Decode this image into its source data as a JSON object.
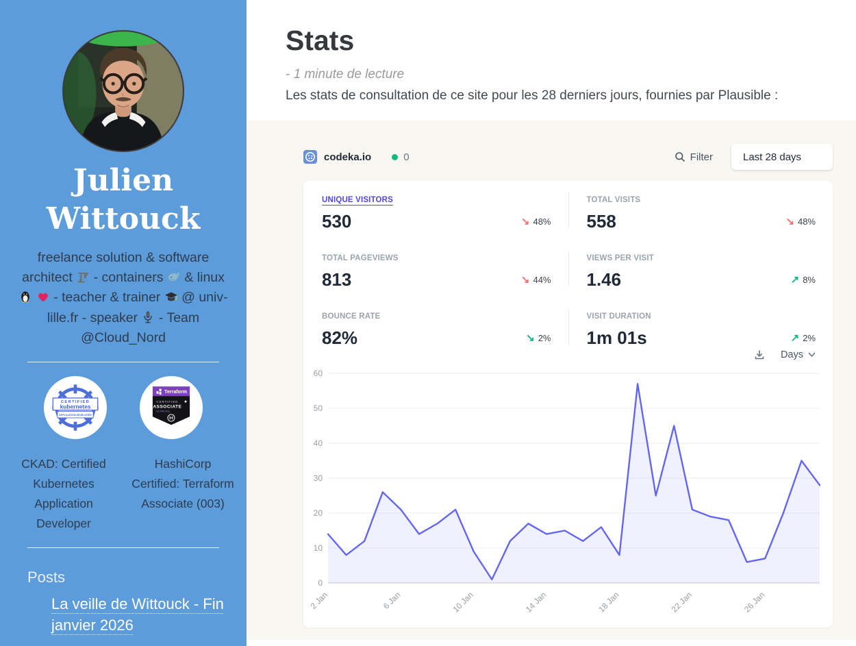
{
  "sidebar": {
    "name": "Julien Wittouck",
    "bio": "freelance solution & software architect 🏗 - containers 🐳 & linux 🐧 ❤️ - teacher & trainer 🎓 @ univ-lille.fr - speaker 🎙 - Team @Cloud_Nord",
    "badges": [
      {
        "caption": "CKAD: Certified Kubernetes Application Developer",
        "image_lines": [
          "CERTIFIED",
          "kubernetes",
          "APPLICATION DEVELOPER"
        ]
      },
      {
        "caption": "HashiCorp Certified: Terraform Associate (003)",
        "image_lines": [
          "Terraform",
          "CERTIFIED",
          "ASSOCIATE",
          "HCTA0-003"
        ]
      }
    ],
    "posts_heading": "Posts",
    "posts": [
      "La veille de Wittouck - Fin janvier 2026"
    ]
  },
  "main": {
    "title": "Stats",
    "reading_time": "- 1 minute de lecture",
    "description": "Les stats de consultation de ce site pour les 28 derniers jours, fournies par Plausible :"
  },
  "plausible": {
    "site": "codeka.io",
    "current_visitors": "0",
    "filter_label": "Filter",
    "date_range": "Last 28 days",
    "interval_label": "Days",
    "metrics": [
      {
        "label": "UNIQUE VISITORS",
        "value": "530",
        "change": "48%",
        "direction": "down",
        "trend_color": "red",
        "selected": true
      },
      {
        "label": "TOTAL VISITS",
        "value": "558",
        "change": "48%",
        "direction": "down",
        "trend_color": "red",
        "selected": false
      },
      {
        "label": "TOTAL PAGEVIEWS",
        "value": "813",
        "change": "44%",
        "direction": "down",
        "trend_color": "red",
        "selected": false
      },
      {
        "label": "VIEWS PER VISIT",
        "value": "1.46",
        "change": "8%",
        "direction": "up",
        "trend_color": "green",
        "selected": false
      },
      {
        "label": "BOUNCE RATE",
        "value": "82%",
        "change": "2%",
        "direction": "down",
        "trend_color": "green",
        "selected": false
      },
      {
        "label": "VISIT DURATION",
        "value": "1m 01s",
        "change": "2%",
        "direction": "up",
        "trend_color": "green",
        "selected": false
      }
    ]
  },
  "chart_data": {
    "type": "area",
    "series_name": "Unique visitors",
    "x": [
      "2 Jan",
      "3 Jan",
      "4 Jan",
      "5 Jan",
      "6 Jan",
      "7 Jan",
      "8 Jan",
      "9 Jan",
      "10 Jan",
      "11 Jan",
      "12 Jan",
      "13 Jan",
      "14 Jan",
      "15 Jan",
      "16 Jan",
      "17 Jan",
      "18 Jan",
      "19 Jan",
      "20 Jan",
      "21 Jan",
      "22 Jan",
      "23 Jan",
      "24 Jan",
      "25 Jan",
      "26 Jan",
      "27 Jan",
      "28 Jan",
      "29 Jan"
    ],
    "values": [
      14,
      8,
      12,
      26,
      21,
      14,
      17,
      21,
      9,
      1,
      12,
      17,
      14,
      15,
      12,
      16,
      8,
      57,
      25,
      45,
      21,
      19,
      18,
      6,
      7,
      20,
      35,
      28
    ],
    "x_tick_labels": [
      "2 Jan",
      "6 Jan",
      "10 Jan",
      "14 Jan",
      "18 Jan",
      "22 Jan",
      "26 Jan"
    ],
    "y_ticks": [
      0,
      10,
      20,
      30,
      40,
      50,
      60
    ],
    "ylim": [
      0,
      60
    ],
    "grid": true,
    "legend": false,
    "line_color": "#6366f1",
    "fill_color": "rgba(99,102,241,0.09)"
  },
  "colors": {
    "sidebar_background": "#5d9cda",
    "widget_background": "#f8f7f2",
    "accent_indigo": "#4f46e5",
    "chart_line": "#6366f1",
    "trend_down_red": "#f87171",
    "trend_up_green": "#10b981",
    "live_dot_green": "#10b981"
  },
  "icons": {
    "site_favicon": "codeka-favicon",
    "filter": "magnifier-icon",
    "download": "download-icon",
    "interval_chevron": "chevron-down-icon",
    "live_indicator": "green-dot"
  }
}
